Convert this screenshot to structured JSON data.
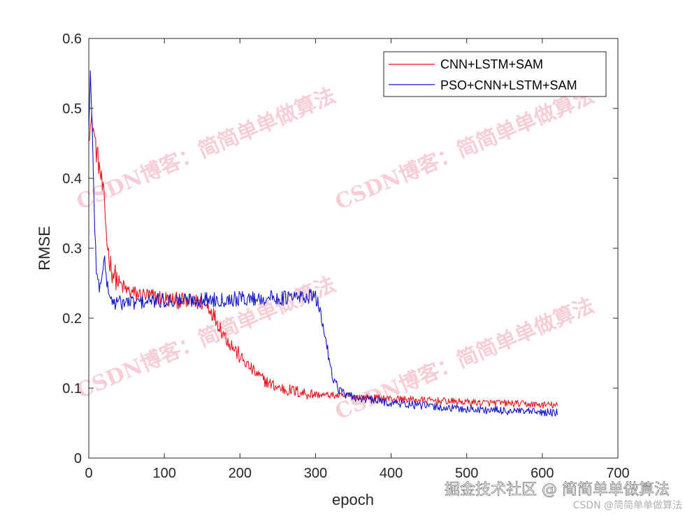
{
  "chart_data": {
    "type": "line",
    "xlabel": "epoch",
    "ylabel": "RMSE",
    "xlim": [
      0,
      700
    ],
    "ylim": [
      0,
      0.6
    ],
    "xticks": [
      0,
      100,
      200,
      300,
      400,
      500,
      600,
      700
    ],
    "yticks": [
      0,
      0.1,
      0.2,
      0.3,
      0.4,
      0.5,
      0.6
    ],
    "xtick_labels": [
      "0",
      "100",
      "200",
      "300",
      "400",
      "500",
      "600",
      "700"
    ],
    "ytick_labels": [
      "0",
      "0.1",
      "0.2",
      "0.3",
      "0.4",
      "0.5",
      "0.6"
    ],
    "grid": false,
    "legend_position": "top-right",
    "series": [
      {
        "name": "CNN+LSTM+SAM",
        "color": "#e8161f",
        "x": [
          0,
          5,
          10,
          15,
          20,
          25,
          30,
          40,
          50,
          60,
          70,
          80,
          90,
          100,
          110,
          120,
          130,
          140,
          150,
          160,
          170,
          180,
          190,
          200,
          210,
          220,
          230,
          240,
          250,
          260,
          270,
          280,
          290,
          300,
          310,
          320,
          330,
          340,
          350,
          360,
          380,
          400,
          420,
          440,
          460,
          480,
          500,
          520,
          540,
          560,
          580,
          600,
          610,
          620
        ],
        "y": [
          0.47,
          0.48,
          0.44,
          0.41,
          0.37,
          0.3,
          0.27,
          0.25,
          0.24,
          0.235,
          0.233,
          0.232,
          0.23,
          0.228,
          0.226,
          0.225,
          0.224,
          0.223,
          0.222,
          0.215,
          0.195,
          0.175,
          0.16,
          0.145,
          0.133,
          0.122,
          0.113,
          0.106,
          0.101,
          0.098,
          0.096,
          0.094,
          0.092,
          0.091,
          0.09,
          0.09,
          0.089,
          0.088,
          0.088,
          0.087,
          0.086,
          0.085,
          0.084,
          0.083,
          0.082,
          0.081,
          0.08,
          0.079,
          0.079,
          0.078,
          0.077,
          0.076,
          0.076,
          0.075
        ]
      },
      {
        "name": "PSO+CNN+LSTM+SAM",
        "color": "#1216c6",
        "x": [
          0,
          2,
          5,
          8,
          10,
          12,
          15,
          18,
          20,
          25,
          30,
          35,
          40,
          50,
          60,
          70,
          80,
          100,
          120,
          140,
          160,
          180,
          200,
          220,
          240,
          260,
          280,
          290,
          295,
          300,
          305,
          310,
          315,
          320,
          325,
          330,
          335,
          340,
          350,
          360,
          380,
          400,
          420,
          440,
          460,
          480,
          500,
          520,
          540,
          560,
          580,
          600,
          610,
          620
        ],
        "y": [
          0.47,
          0.55,
          0.45,
          0.33,
          0.27,
          0.25,
          0.245,
          0.27,
          0.285,
          0.245,
          0.225,
          0.222,
          0.222,
          0.223,
          0.222,
          0.223,
          0.224,
          0.225,
          0.226,
          0.226,
          0.227,
          0.227,
          0.228,
          0.228,
          0.229,
          0.229,
          0.23,
          0.231,
          0.232,
          0.228,
          0.215,
          0.19,
          0.16,
          0.13,
          0.11,
          0.1,
          0.095,
          0.09,
          0.087,
          0.085,
          0.082,
          0.079,
          0.077,
          0.075,
          0.073,
          0.071,
          0.07,
          0.069,
          0.068,
          0.067,
          0.066,
          0.065,
          0.065,
          0.064
        ]
      }
    ]
  },
  "watermarks": [
    {
      "text": "CSDN博客：简简单单做算法"
    },
    {
      "text": "CSDN博客：简简单单做算法"
    },
    {
      "text": "CSDN博客：简简单单做算法"
    },
    {
      "text": "CSDN博客：简简单单做算法"
    }
  ],
  "footer": {
    "juejin": "掘金技术社区 @ 简简单单做算法",
    "csdn": "CSDN @简简单单做算法"
  }
}
